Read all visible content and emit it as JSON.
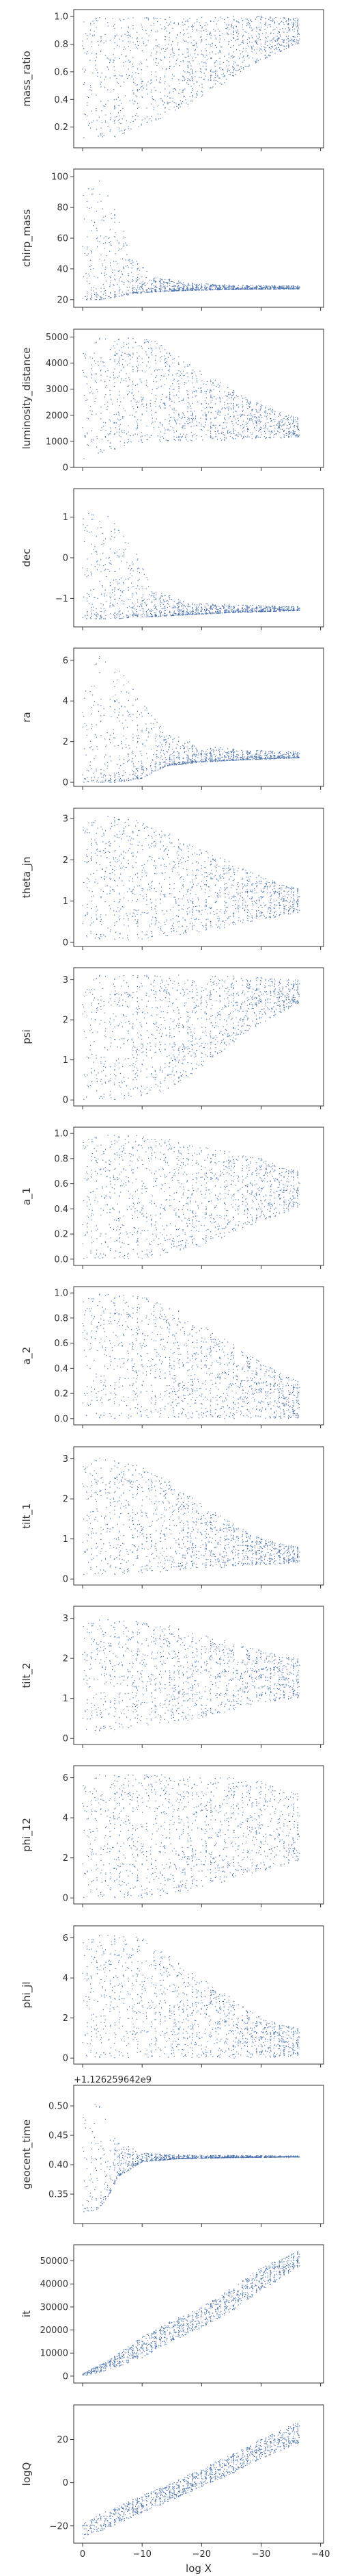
{
  "chart_data": {
    "type": "scatter",
    "layout": "vertical stack of 16 panels sharing the x axis",
    "grid": false,
    "marker_color": "#4c72b0",
    "xlabel": "log X",
    "xlim": [
      1.5,
      -40.5
    ],
    "xticks": [
      0,
      -10,
      -20,
      -30,
      -40
    ],
    "xtick_labels": [
      "0",
      "−10",
      "−20",
      "−30",
      "−40"
    ],
    "panels": [
      {
        "ylabel": "mass_ratio",
        "ylim": [
          0.05,
          1.05
        ],
        "yticks": [
          0.2,
          0.4,
          0.6,
          0.8,
          1.0
        ],
        "ytick_labels": [
          "0.2",
          "0.4",
          "0.6",
          "0.8",
          "1.0"
        ],
        "offset": "",
        "envelope": {
          "x": [
            0,
            -5,
            -10,
            -15,
            -20,
            -25,
            -30,
            -36
          ],
          "lo": [
            0.12,
            0.12,
            0.2,
            0.3,
            0.42,
            0.55,
            0.68,
            0.8
          ],
          "hi": [
            1.0,
            1.0,
            1.0,
            1.0,
            1.0,
            1.0,
            1.0,
            0.99
          ]
        }
      },
      {
        "ylabel": "chirp_mass",
        "ylim": [
          15,
          105
        ],
        "yticks": [
          20,
          40,
          60,
          80,
          100
        ],
        "ytick_labels": [
          "20",
          "40",
          "60",
          "80",
          "100"
        ],
        "offset": "",
        "envelope": {
          "x": [
            0,
            -3,
            -6,
            -9,
            -12,
            -18,
            -25,
            -36
          ],
          "lo": [
            20,
            20,
            22,
            24,
            25,
            26,
            26.5,
            27
          ],
          "hi": [
            100,
            100,
            75,
            45,
            35,
            31,
            29.5,
            29
          ]
        }
      },
      {
        "ylabel": "luminosity_distance",
        "ylim": [
          0,
          5300
        ],
        "yticks": [
          0,
          1000,
          2000,
          3000,
          4000,
          5000
        ],
        "ytick_labels": [
          "0",
          "1000",
          "2000",
          "3000",
          "4000",
          "5000"
        ],
        "offset": "",
        "envelope": {
          "x": [
            0,
            -3,
            -8,
            -12,
            -18,
            -25,
            -30,
            -36
          ],
          "lo": [
            300,
            500,
            900,
            1000,
            1000,
            1050,
            1100,
            1150
          ],
          "hi": [
            4800,
            5000,
            5000,
            4900,
            4000,
            3000,
            2400,
            1900
          ]
        }
      },
      {
        "ylabel": "dec",
        "ylim": [
          -1.7,
          1.7
        ],
        "yticks": [
          -1,
          0,
          1
        ],
        "ytick_labels": [
          "−1",
          "0",
          "1"
        ],
        "offset": "",
        "envelope": {
          "x": [
            0,
            -3,
            -6,
            -9,
            -12,
            -18,
            -25,
            -36
          ],
          "lo": [
            -1.5,
            -1.5,
            -1.5,
            -1.45,
            -1.45,
            -1.4,
            -1.35,
            -1.3
          ],
          "hi": [
            1.4,
            1.3,
            0.8,
            0.1,
            -0.8,
            -1.1,
            -1.15,
            -1.2
          ]
        }
      },
      {
        "ylabel": "ra",
        "ylim": [
          -0.2,
          6.6
        ],
        "yticks": [
          0,
          2,
          4,
          6
        ],
        "ytick_labels": [
          "0",
          "2",
          "4",
          "6"
        ],
        "offset": "",
        "envelope": {
          "x": [
            0,
            -3,
            -6,
            -10,
            -14,
            -20,
            -27,
            -36
          ],
          "lo": [
            0,
            0,
            0,
            0.2,
            0.8,
            1.0,
            1.1,
            1.2
          ],
          "hi": [
            6.3,
            6.3,
            5.8,
            4.0,
            2.5,
            1.8,
            1.6,
            1.5
          ]
        }
      },
      {
        "ylabel": "theta_jn",
        "ylim": [
          -0.1,
          3.25
        ],
        "yticks": [
          0,
          1,
          2,
          3
        ],
        "ytick_labels": [
          "0",
          "1",
          "2",
          "3"
        ],
        "offset": "",
        "envelope": {
          "x": [
            0,
            -4,
            -8,
            -12,
            -18,
            -24,
            -30,
            -36
          ],
          "lo": [
            0.1,
            0.05,
            0.05,
            0.1,
            0.2,
            0.35,
            0.55,
            0.7
          ],
          "hi": [
            3.0,
            3.1,
            3.0,
            2.8,
            2.4,
            2.0,
            1.6,
            1.3
          ]
        }
      },
      {
        "ylabel": "psi",
        "ylim": [
          -0.15,
          3.3
        ],
        "yticks": [
          0,
          1,
          2,
          3
        ],
        "ytick_labels": [
          "0",
          "1",
          "2",
          "3"
        ],
        "offset": "",
        "envelope": {
          "x": [
            0,
            -5,
            -10,
            -15,
            -20,
            -25,
            -30,
            -36
          ],
          "lo": [
            0,
            0,
            0.05,
            0.3,
            0.8,
            1.4,
            1.9,
            2.4
          ],
          "hi": [
            3.14,
            3.14,
            3.14,
            3.14,
            3.14,
            3.1,
            3.05,
            3.0
          ]
        }
      },
      {
        "ylabel": "a_1",
        "ylim": [
          -0.05,
          1.05
        ],
        "yticks": [
          0.0,
          0.2,
          0.4,
          0.6,
          0.8,
          1.0
        ],
        "ytick_labels": [
          "0.0",
          "0.2",
          "0.4",
          "0.6",
          "0.8",
          "1.0"
        ],
        "offset": "",
        "envelope": {
          "x": [
            0,
            -5,
            -10,
            -15,
            -20,
            -25,
            -30,
            -36
          ],
          "lo": [
            0,
            0,
            0,
            0.05,
            0.1,
            0.2,
            0.3,
            0.4
          ],
          "hi": [
            1.0,
            1.0,
            0.98,
            0.95,
            0.9,
            0.85,
            0.8,
            0.7
          ]
        }
      },
      {
        "ylabel": "a_2",
        "ylim": [
          -0.05,
          1.05
        ],
        "yticks": [
          0.0,
          0.2,
          0.4,
          0.6,
          0.8,
          1.0
        ],
        "ytick_labels": [
          "0.0",
          "0.2",
          "0.4",
          "0.6",
          "0.8",
          "1.0"
        ],
        "offset": "",
        "envelope": {
          "x": [
            0,
            -5,
            -10,
            -15,
            -20,
            -25,
            -30,
            -36
          ],
          "lo": [
            0,
            0,
            0,
            0,
            0,
            0,
            0,
            0
          ],
          "hi": [
            1.0,
            1.0,
            0.98,
            0.9,
            0.75,
            0.6,
            0.45,
            0.3
          ]
        }
      },
      {
        "ylabel": "tilt_1",
        "ylim": [
          -0.15,
          3.3
        ],
        "yticks": [
          0,
          1,
          2,
          3
        ],
        "ytick_labels": [
          "0",
          "1",
          "2",
          "3"
        ],
        "offset": "",
        "envelope": {
          "x": [
            0,
            -5,
            -10,
            -15,
            -20,
            -25,
            -30,
            -36
          ],
          "lo": [
            0.1,
            0.1,
            0.15,
            0.2,
            0.25,
            0.3,
            0.35,
            0.4
          ],
          "hi": [
            3.1,
            3.0,
            2.8,
            2.4,
            1.9,
            1.4,
            1.0,
            0.8
          ]
        }
      },
      {
        "ylabel": "tilt_2",
        "ylim": [
          -0.15,
          3.3
        ],
        "yticks": [
          0,
          1,
          2,
          3
        ],
        "ytick_labels": [
          "0",
          "1",
          "2",
          "3"
        ],
        "offset": "",
        "envelope": {
          "x": [
            0,
            -5,
            -10,
            -15,
            -20,
            -25,
            -30,
            -36
          ],
          "lo": [
            0.15,
            0.2,
            0.3,
            0.4,
            0.5,
            0.7,
            0.9,
            1.0
          ],
          "hi": [
            3.0,
            3.0,
            2.9,
            2.8,
            2.6,
            2.4,
            2.2,
            2.0
          ]
        }
      },
      {
        "ylabel": "phi_12",
        "ylim": [
          -0.3,
          6.6
        ],
        "yticks": [
          0,
          2,
          4,
          6
        ],
        "ytick_labels": [
          "0",
          "2",
          "4",
          "6"
        ],
        "offset": "",
        "envelope": {
          "x": [
            0,
            -5,
            -10,
            -15,
            -20,
            -25,
            -30,
            -36
          ],
          "lo": [
            0,
            0,
            0,
            0.2,
            0.5,
            0.9,
            1.3,
            1.8
          ],
          "hi": [
            6.2,
            6.2,
            6.2,
            6.2,
            6.1,
            6.0,
            5.8,
            5.2
          ]
        }
      },
      {
        "ylabel": "phi_jl",
        "ylim": [
          -0.3,
          6.6
        ],
        "yticks": [
          0,
          2,
          4,
          6
        ],
        "ytick_labels": [
          "0",
          "2",
          "4",
          "6"
        ],
        "offset": "",
        "envelope": {
          "x": [
            0,
            -5,
            -10,
            -15,
            -20,
            -25,
            -30,
            -36
          ],
          "lo": [
            0,
            0,
            0,
            0,
            0,
            0,
            0,
            0.1
          ],
          "hi": [
            6.2,
            6.2,
            6.0,
            5.0,
            4.0,
            3.0,
            2.0,
            1.5
          ]
        }
      },
      {
        "ylabel": "geocent_time",
        "ylim": [
          0.3,
          0.535
        ],
        "yticks": [
          0.35,
          0.4,
          0.45,
          0.5
        ],
        "ytick_labels": [
          "0.35",
          "0.40",
          "0.45",
          "0.50"
        ],
        "offset": "+1.126259642e9",
        "envelope": {
          "x": [
            0,
            -2,
            -4,
            -6,
            -10,
            -16,
            -25,
            -36
          ],
          "lo": [
            0.32,
            0.32,
            0.34,
            0.38,
            0.405,
            0.41,
            0.412,
            0.413
          ],
          "hi": [
            0.52,
            0.52,
            0.48,
            0.44,
            0.42,
            0.417,
            0.416,
            0.415
          ]
        }
      },
      {
        "ylabel": "it",
        "ylim": [
          -3000,
          57000
        ],
        "yticks": [
          0,
          10000,
          20000,
          30000,
          40000,
          50000
        ],
        "ytick_labels": [
          "0",
          "10000",
          "20000",
          "30000",
          "40000",
          "50000"
        ],
        "offset": "",
        "envelope": {
          "x": [
            0,
            -5,
            -10,
            -15,
            -20,
            -25,
            -30,
            -36
          ],
          "lo": [
            0,
            3000,
            8000,
            15000,
            21000,
            28000,
            37000,
            47000
          ],
          "hi": [
            1000,
            8000,
            17000,
            24000,
            30000,
            38000,
            47000,
            54000
          ]
        }
      },
      {
        "ylabel": "logQ",
        "ylim": [
          -28,
          36
        ],
        "yticks": [
          -20,
          0,
          20
        ],
        "ytick_labels": [
          "−20",
          "0",
          "20"
        ],
        "offset": "",
        "envelope": {
          "x": [
            0,
            -5,
            -10,
            -15,
            -20,
            -25,
            -30,
            -36
          ],
          "lo": [
            -26,
            -20,
            -14,
            -8,
            -2,
            4,
            11,
            18
          ],
          "hi": [
            -18,
            -12,
            -6,
            0,
            7,
            13,
            20,
            28
          ]
        }
      }
    ]
  }
}
